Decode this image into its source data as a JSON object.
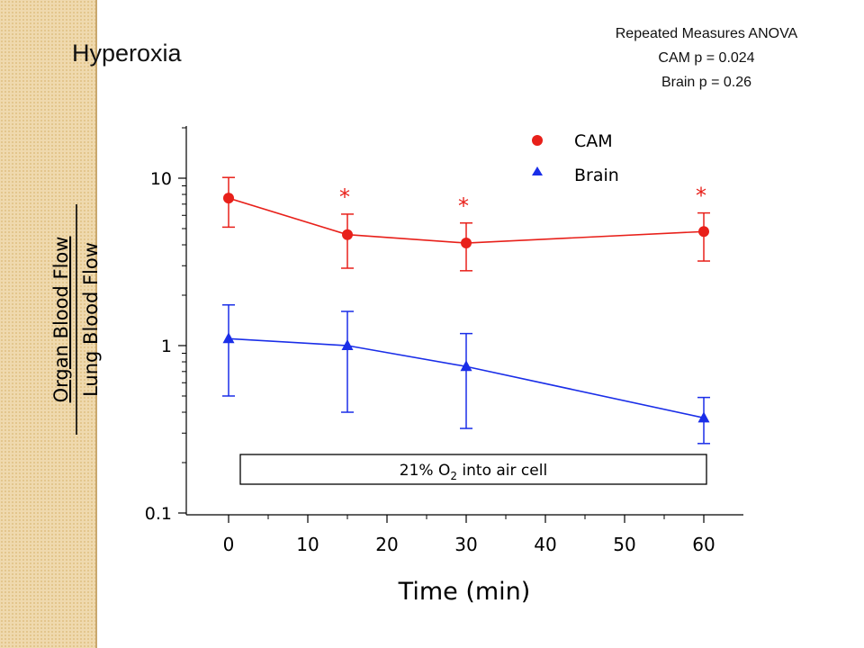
{
  "slide": {
    "title": "Hyperoxia",
    "stats": [
      "Repeated Measures ANOVA",
      "CAM p = 0.024",
      "Brain p = 0.26"
    ]
  },
  "chart_data": {
    "type": "line",
    "title": "",
    "xlabel": "Time (min)",
    "ylabel_numerator": "Organ Blood Flow",
    "ylabel_denominator": "Lung Blood Flow",
    "y_scale": "log",
    "xlim": [
      -8,
      65
    ],
    "ylim": [
      0.1,
      20
    ],
    "x_ticks": [
      0,
      10,
      20,
      30,
      40,
      50,
      60
    ],
    "y_ticks": [
      0.1,
      1,
      10
    ],
    "y_tick_labels": [
      "0.1",
      "1",
      "10"
    ],
    "grid": false,
    "legend_position": "top-right",
    "annotation": "21% O2 into air cell",
    "series": [
      {
        "name": "CAM",
        "color": "#e8201a",
        "marker": "circle",
        "x": [
          0,
          15,
          30,
          60
        ],
        "y": [
          7.6,
          4.6,
          4.1,
          4.8
        ],
        "err_low": [
          5.1,
          2.9,
          2.8,
          3.2
        ],
        "err_high": [
          10.1,
          6.1,
          5.4,
          6.2
        ],
        "significance": [
          "",
          "*",
          "*",
          "*"
        ]
      },
      {
        "name": "Brain",
        "color": "#1a2ee8",
        "marker": "triangle",
        "x": [
          0,
          15,
          30,
          60
        ],
        "y": [
          1.1,
          1.0,
          0.75,
          0.37
        ],
        "err_low": [
          0.5,
          0.4,
          0.32,
          0.26
        ],
        "err_high": [
          1.75,
          1.6,
          1.18,
          0.49
        ]
      }
    ]
  }
}
